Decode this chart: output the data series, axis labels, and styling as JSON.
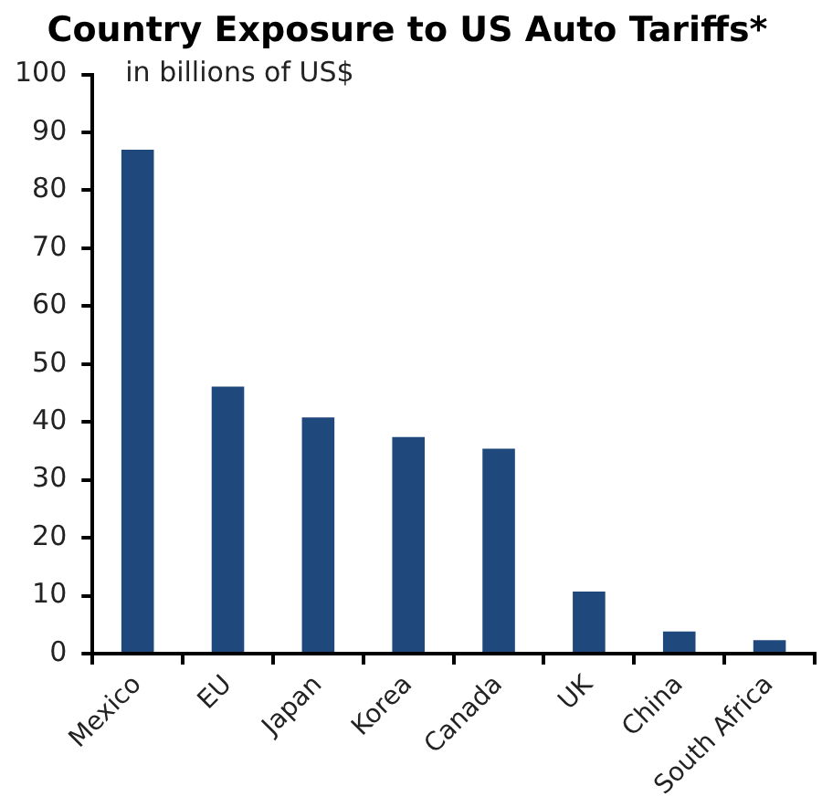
{
  "chart_data": {
    "type": "bar",
    "title": "Country Exposure to US Auto Tariffs*",
    "ylabel": "in billions of US$",
    "categories": [
      "Mexico",
      "EU",
      "Japan",
      "Korea",
      "Canada",
      "UK",
      "China",
      "South Africa"
    ],
    "values": [
      87,
      46.1,
      40.8,
      37.4,
      35.4,
      10.7,
      3.8,
      2.3
    ],
    "color": "#1f497d",
    "ylim": [
      0,
      100
    ],
    "yticks": [
      0,
      10,
      20,
      30,
      40,
      50,
      60,
      70,
      80,
      90,
      100
    ],
    "grid": false,
    "legend": false
  }
}
